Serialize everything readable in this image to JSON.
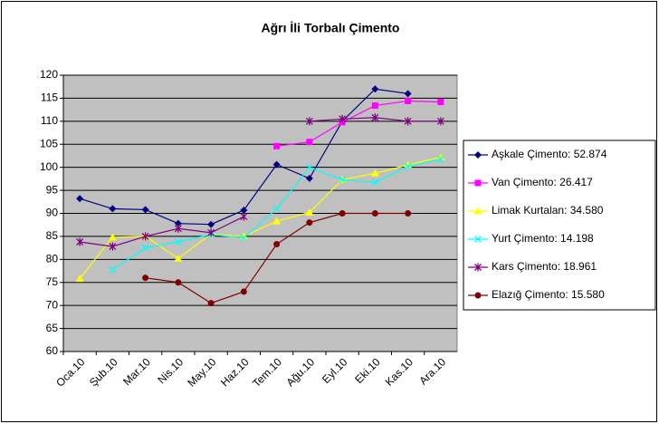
{
  "chart_data": {
    "type": "line",
    "title": "Ağrı İli Torbalı Çimento",
    "categories": [
      "Oca.10",
      "Şub.10",
      "Mar.10",
      "Nis.10",
      "May.10",
      "Haz.10",
      "Tem.10",
      "Ağu.10",
      "Eyl.10",
      "Eki.10",
      "Kas.10",
      "Ara.10"
    ],
    "series": [
      {
        "name": "Aşkale Çimento: 52.874",
        "color": "#000080",
        "marker": "diamond",
        "values": [
          93.2,
          91,
          90.8,
          87.8,
          87.6,
          90.7,
          100.6,
          97.6,
          110,
          117,
          116,
          null
        ]
      },
      {
        "name": "Van Çimento: 26.417",
        "color": "#ff00ff",
        "marker": "square",
        "values": [
          null,
          null,
          null,
          null,
          null,
          null,
          104.6,
          105.5,
          109.8,
          113.4,
          114.4,
          114.2
        ]
      },
      {
        "name": "Limak Kurtalan: 34.580",
        "color": "#ffff00",
        "marker": "triangle",
        "values": [
          75.8,
          84.8,
          85,
          80.2,
          85.5,
          85,
          88.3,
          90.2,
          97.3,
          98.7,
          100.5,
          102.2
        ]
      },
      {
        "name": "Yurt Çimento: 14.198",
        "color": "#00ffff",
        "marker": "x",
        "values": [
          null,
          77.8,
          82.5,
          83.8,
          85.4,
          84.7,
          91,
          100,
          97.3,
          96.7,
          100.2,
          101.8
        ]
      },
      {
        "name": "Kars Çimento: 18.961",
        "color": "#800080",
        "marker": "star",
        "values": [
          83.8,
          82.8,
          85,
          86.7,
          85.8,
          89.3,
          null,
          110,
          110.5,
          110.8,
          110,
          110
        ]
      },
      {
        "name": "Elazığ Çimento: 15.580",
        "color": "#800000",
        "marker": "circle",
        "values": [
          null,
          null,
          76,
          75,
          70.5,
          73,
          83.3,
          88,
          90,
          90,
          90,
          null
        ]
      }
    ],
    "ylim": [
      60,
      120
    ],
    "yticks": [
      60,
      65,
      70,
      75,
      80,
      85,
      90,
      95,
      100,
      105,
      110,
      115,
      120
    ],
    "grid": true,
    "legend": "right"
  }
}
